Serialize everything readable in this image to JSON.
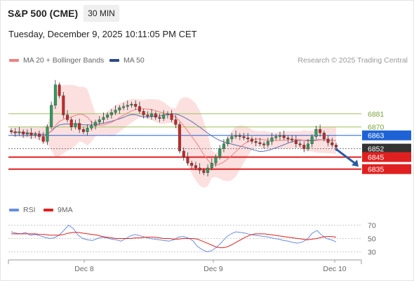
{
  "header": {
    "title": "S&P 500 (CME)",
    "interval": "30 MIN",
    "timestamp": "Tuesday, December 9, 2025 10:11:05 PM CET"
  },
  "legend": {
    "ma20_label": "MA 20 + Bollinger Bands",
    "ma50_label": "MA 50",
    "copyright": "Research © 2025 Trading Central"
  },
  "rsi_legend": {
    "rsi_label": "RSI",
    "ma9_label": "9MA"
  },
  "colors": {
    "candle_up": "#2e9e5b",
    "candle_down": "#c62828",
    "bollinger_fill": "#fcdada",
    "ma20": "#f08080",
    "ma50": "#5b6fb0",
    "resistance": "#9cbf5a",
    "current_price": "#1e63d6",
    "support": "#e02020",
    "pivot_label": "#333333",
    "arrow": "#2a5ba6",
    "rsi": "#6a8ee0",
    "rsi_ma": "#e02020"
  },
  "chart_data": [
    {
      "type": "candlestick",
      "name": "price",
      "ylim": [
        6815,
        6920
      ],
      "x_ticks": [
        "Dec 8",
        "Dec 9",
        "Dec 10"
      ],
      "levels": [
        {
          "value": 6881,
          "label": "6881",
          "kind": "resistance"
        },
        {
          "value": 6870,
          "label": "6870",
          "kind": "resistance"
        },
        {
          "value": 6863,
          "label": "6863",
          "kind": "current"
        },
        {
          "value": 6852,
          "label": "6852",
          "kind": "pivot"
        },
        {
          "value": 6845,
          "label": "6845",
          "kind": "support"
        },
        {
          "value": 6835,
          "label": "6835",
          "kind": "support"
        }
      ],
      "arrow": {
        "from": 6852,
        "to": 6837
      }
    },
    {
      "type": "line",
      "name": "rsi",
      "ylim": [
        20,
        80
      ],
      "y_ticks": [
        "70",
        "50",
        "30"
      ],
      "series": [
        {
          "name": "RSI",
          "values": [
            60,
            58,
            57,
            59,
            55,
            56,
            54,
            52,
            50,
            51,
            55,
            62,
            70,
            65,
            55,
            50,
            48,
            47,
            50,
            52,
            51,
            49,
            48,
            46,
            50,
            54,
            56,
            54,
            52,
            50,
            49,
            48,
            47,
            46,
            48,
            52,
            53,
            51,
            47,
            38,
            33,
            30,
            32,
            37,
            44,
            52,
            57,
            60,
            59,
            58,
            56,
            55,
            54,
            53,
            52,
            50,
            49,
            47,
            46,
            44,
            43,
            45,
            49,
            58,
            62,
            55,
            50,
            48,
            45
          ]
        },
        {
          "name": "9MA",
          "values": [
            57,
            57,
            57,
            57,
            57,
            57,
            56,
            56,
            55,
            55,
            55,
            56,
            58,
            59,
            59,
            58,
            57,
            56,
            55,
            53,
            52,
            51,
            50,
            50,
            50,
            50,
            51,
            51,
            52,
            52,
            52,
            51,
            50,
            50,
            49,
            49,
            50,
            50,
            50,
            49,
            46,
            43,
            40,
            37,
            36,
            37,
            40,
            44,
            48,
            52,
            55,
            57,
            57,
            57,
            56,
            55,
            54,
            53,
            52,
            51,
            50,
            49,
            48,
            49,
            50,
            52,
            53,
            53,
            52
          ]
        }
      ]
    }
  ]
}
